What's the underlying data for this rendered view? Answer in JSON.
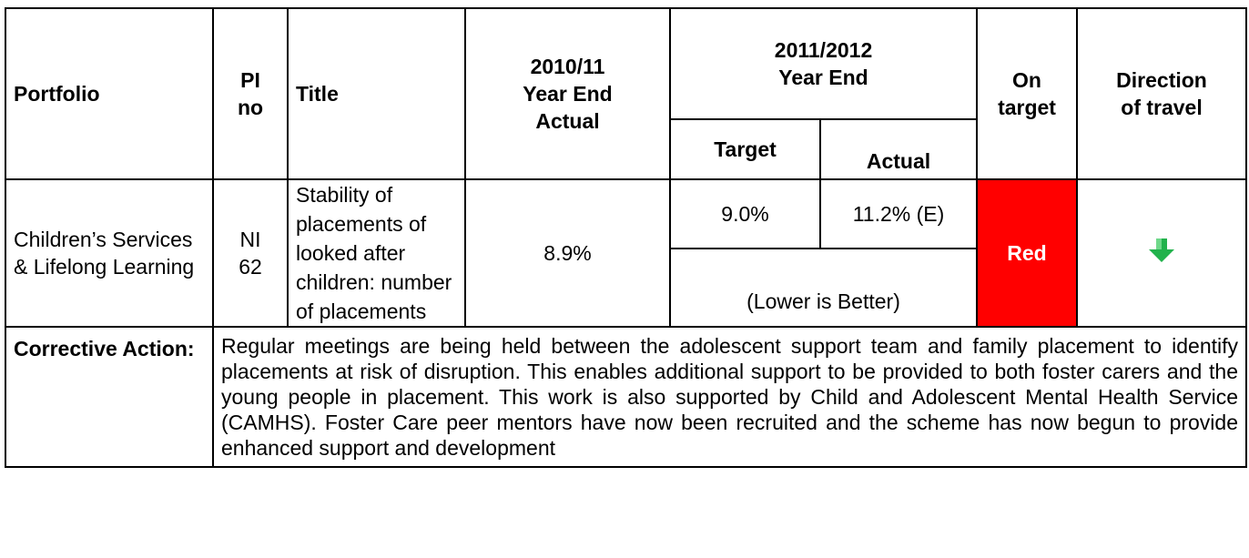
{
  "table": {
    "headers": {
      "portfolio": "Portfolio",
      "pi_no": "PI\nno",
      "title": "Title",
      "actual_2010": "2010/11\nYear End\nActual",
      "year_2011": "2011/2012\nYear End",
      "target": "Target",
      "actual": "Actual",
      "on_target": "On\ntarget",
      "direction": "Direction\nof travel"
    },
    "row": {
      "portfolio": "Children’s Services & Lifelong Learning",
      "pi_no": "NI 62",
      "title": "Stability of placements of looked after children: number of placements",
      "actual_2010": "8.9%",
      "target": "9.0%",
      "actual": "11.2% (E)",
      "note": "(Lower is Better)",
      "on_target": "Red"
    },
    "corrective": {
      "label": "Corrective Action:",
      "text": "Regular meetings are being held between the adolescent support team and family placement to identify placements at risk of disruption. This enables additional support to be provided to both foster carers and the young people in placement. This work is also supported by Child and Adolescent Mental Health Service (CAMHS). Foster Care peer mentors have now been recruited and the scheme has now begun to provide enhanced support and development"
    }
  }
}
